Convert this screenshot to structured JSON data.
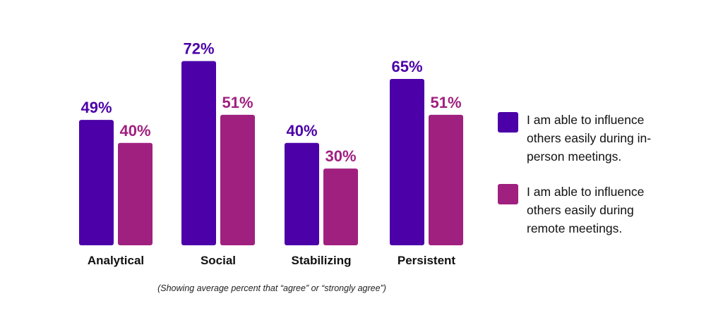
{
  "colors": {
    "series_in_person": "#4b00a8",
    "series_remote": "#a0207f",
    "category_label": "#111111"
  },
  "legend": {
    "items": [
      "I am able to influence others easily during in-person meetings.",
      "I am able to influence others easily during remote meetings."
    ]
  },
  "footnote": "(Showing average percent that “agree” or “strongly agree”)",
  "chart_data": {
    "type": "bar",
    "categories": [
      "Analytical",
      "Social",
      "Stabilizing",
      "Persistent"
    ],
    "series": [
      {
        "name": "I am able to influence others easily during in-person meetings.",
        "values": [
          49,
          72,
          40,
          65
        ],
        "labels": [
          "49%",
          "72%",
          "40%",
          "65%"
        ],
        "color": "#4b00a8"
      },
      {
        "name": "I am able to influence others easily during remote meetings.",
        "values": [
          40,
          51,
          30,
          51
        ],
        "labels": [
          "40%",
          "51%",
          "30%",
          "51%"
        ],
        "color": "#a0207f"
      }
    ],
    "title": "",
    "xlabel": "",
    "ylabel": "",
    "ylim": [
      0,
      72
    ],
    "grid": false,
    "legend_position": "right"
  }
}
